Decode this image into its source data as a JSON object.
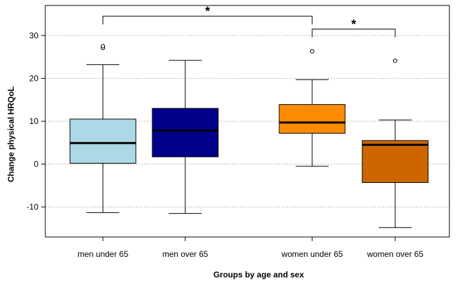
{
  "chart_data": {
    "type": "boxplot",
    "title": "",
    "xlabel": "Groups by age and sex",
    "ylabel": "Change physical HRQoL",
    "ylim": [
      -17,
      37
    ],
    "yticks": [
      -10,
      0,
      10,
      20,
      30
    ],
    "grid": "horizontal-dotted",
    "categories": [
      "men under 65",
      "men over 65",
      "women under 65",
      "women over 65"
    ],
    "series": [
      {
        "category": "men under 65",
        "color": "#add8e6",
        "whisker_low": -11.3,
        "q1": 0.2,
        "median": 4.9,
        "q3": 10.5,
        "whisker_high": 23.2,
        "outliers": [
          27.1,
          27.5
        ]
      },
      {
        "category": "men over 65",
        "color": "#00008b",
        "whisker_low": -11.5,
        "q1": 1.7,
        "median": 7.8,
        "q3": 13.0,
        "whisker_high": 24.2,
        "outliers": []
      },
      {
        "category": "women under 65",
        "color": "#ff8c00",
        "whisker_low": -0.5,
        "q1": 7.2,
        "median": 9.7,
        "q3": 13.9,
        "whisker_high": 19.7,
        "outliers": [
          26.3
        ]
      },
      {
        "category": "women over 65",
        "color": "#cd6600",
        "whisker_low": -14.8,
        "q1": -4.3,
        "median": 4.5,
        "q3": 5.5,
        "whisker_high": 10.3,
        "outliers": [
          24.1
        ]
      }
    ],
    "annotations": [
      {
        "from": "men under 65",
        "to": "women under 65",
        "y_level": 34.5,
        "label": "*"
      },
      {
        "from": "women under 65",
        "to": "women over 65",
        "y_level": 31.5,
        "label": "*"
      }
    ]
  }
}
